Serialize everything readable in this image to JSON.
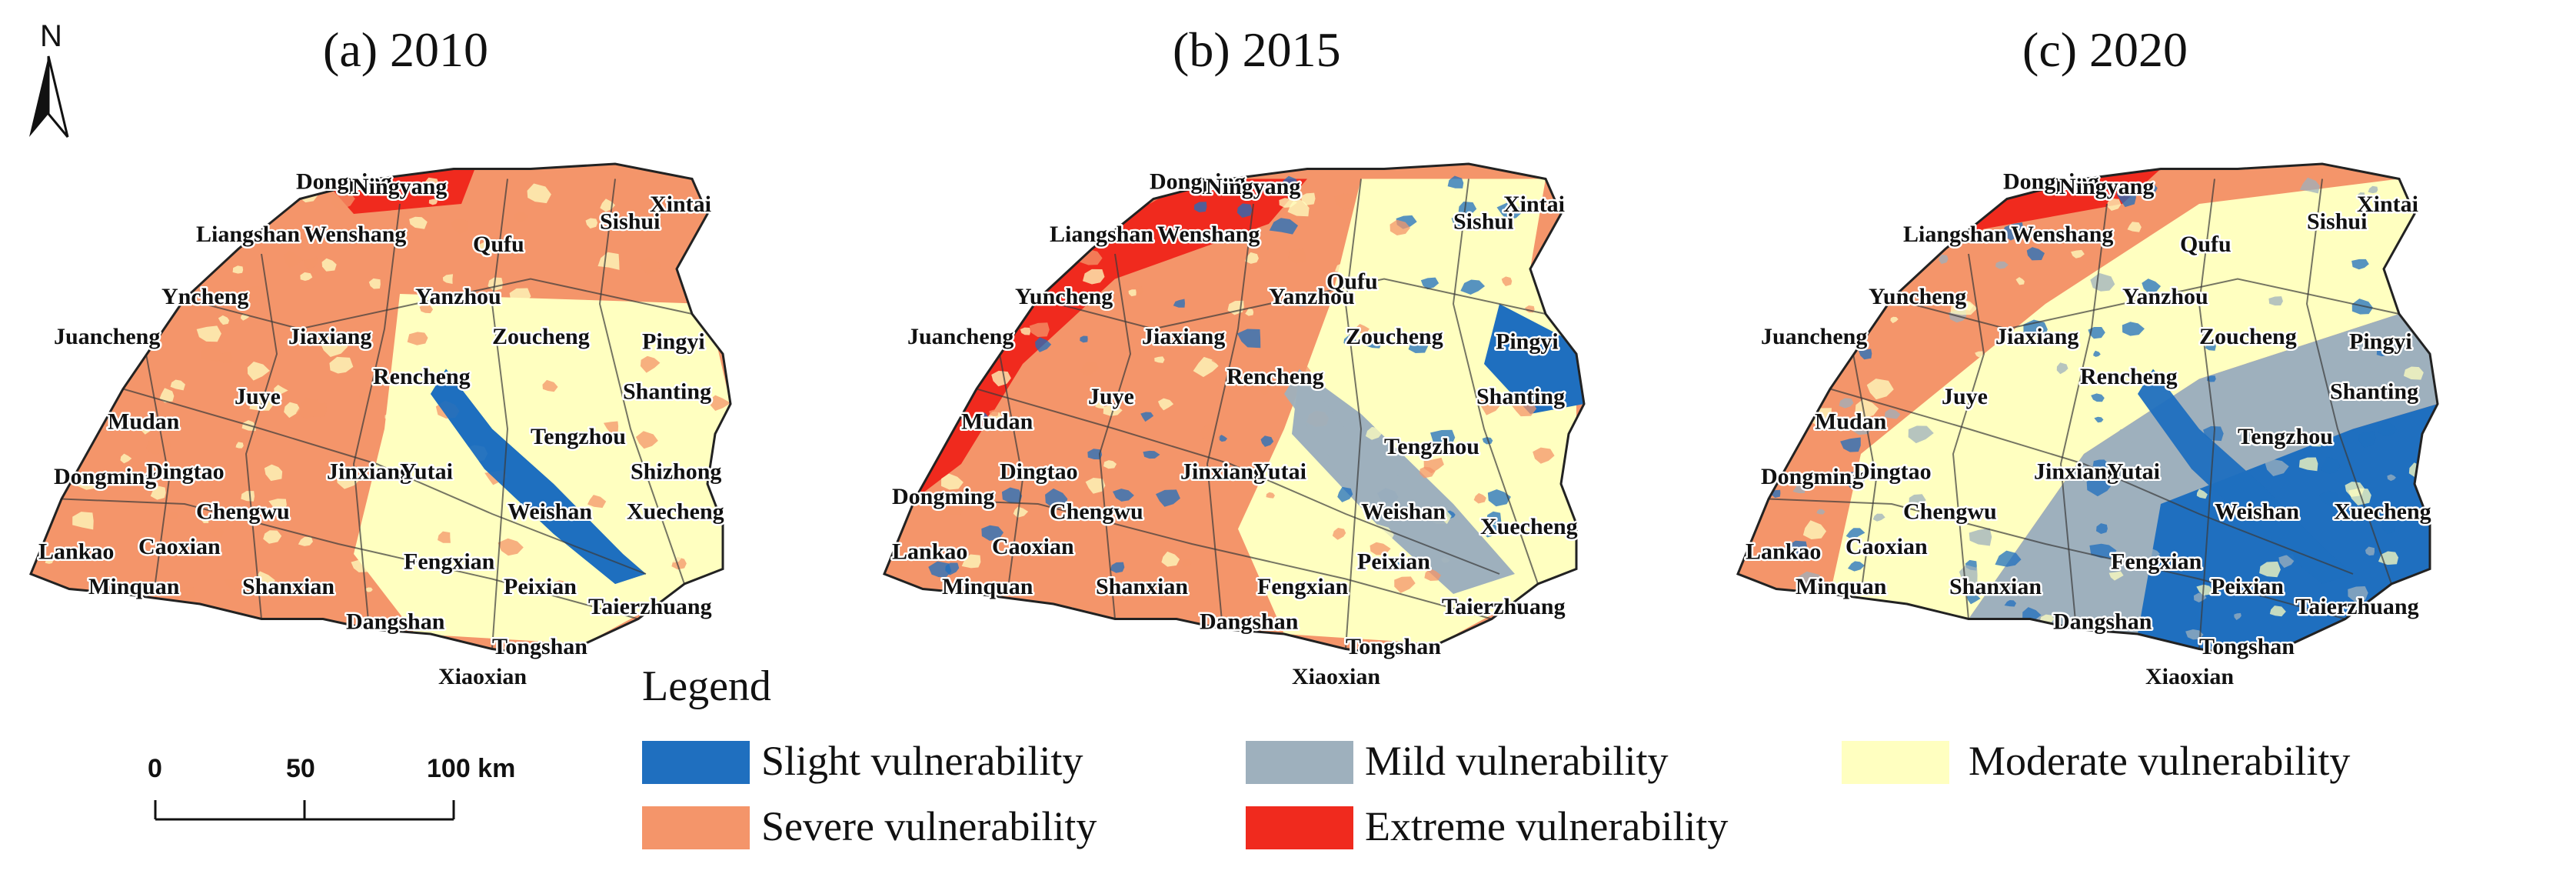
{
  "north_arrow": {
    "label": "N"
  },
  "panels": [
    {
      "title": "(a) 2010",
      "lake": "#1f6fbf",
      "cities": [
        [
          "Dongping",
          0.345,
          0.07
        ],
        [
          "Ningyang",
          0.418,
          0.08
        ],
        [
          "Xintai",
          0.805,
          0.115
        ],
        [
          "Liangshan",
          0.215,
          0.175
        ],
        [
          "Wenshang",
          0.355,
          0.175
        ],
        [
          "Qufu",
          0.575,
          0.195
        ],
        [
          "Sishui",
          0.74,
          0.15
        ],
        [
          "Yncheng",
          0.17,
          0.3
        ],
        [
          "Yanzhou",
          0.5,
          0.3
        ],
        [
          "Juancheng",
          0.03,
          0.38
        ],
        [
          "Jiaxiang",
          0.335,
          0.38
        ],
        [
          "Zoucheng",
          0.6,
          0.38
        ],
        [
          "Pingyi",
          0.795,
          0.39
        ],
        [
          "Rencheng",
          0.445,
          0.46
        ],
        [
          "Shanting",
          0.77,
          0.49
        ],
        [
          "Mudan",
          0.1,
          0.55
        ],
        [
          "Juye",
          0.265,
          0.5
        ],
        [
          "Tengzhou",
          0.65,
          0.58
        ],
        [
          "Dongming",
          0.03,
          0.66
        ],
        [
          "Dingtao",
          0.15,
          0.65
        ],
        [
          "Jinxiang",
          0.385,
          0.65
        ],
        [
          "Yutai",
          0.48,
          0.65
        ],
        [
          "Shizhong",
          0.78,
          0.65
        ],
        [
          "Chengwu",
          0.215,
          0.73
        ],
        [
          "Weishan",
          0.62,
          0.73
        ],
        [
          "Xuecheng",
          0.775,
          0.73
        ],
        [
          "Lankao",
          0.01,
          0.81
        ],
        [
          "Caoxian",
          0.14,
          0.8
        ],
        [
          "Fengxian",
          0.485,
          0.83
        ],
        [
          "Minquan",
          0.075,
          0.88
        ],
        [
          "Shanxian",
          0.275,
          0.88
        ],
        [
          "Peixian",
          0.615,
          0.88
        ],
        [
          "Taierzhuang",
          0.725,
          0.92
        ],
        [
          "Dangshan",
          0.41,
          0.95
        ],
        [
          "Tongshan",
          0.6,
          1.0
        ],
        [
          "Xiaoxian",
          0.53,
          1.06
        ]
      ]
    },
    {
      "title": "(b) 2015",
      "lake": "#9eb0bd",
      "cities": [
        [
          "Dongping",
          0.345,
          0.07
        ],
        [
          "Ningyang",
          0.418,
          0.08
        ],
        [
          "Xintai",
          0.805,
          0.115
        ],
        [
          "Liangshan",
          0.215,
          0.175
        ],
        [
          "Wenshang",
          0.355,
          0.175
        ],
        [
          "Sishui",
          0.74,
          0.15
        ],
        [
          "Yuncheng",
          0.17,
          0.3
        ],
        [
          "Yanzhou",
          0.5,
          0.3
        ],
        [
          "Qufu",
          0.575,
          0.27
        ],
        [
          "Juancheng",
          0.03,
          0.38
        ],
        [
          "Jiaxiang",
          0.335,
          0.38
        ],
        [
          "Zoucheng",
          0.6,
          0.38
        ],
        [
          "Pingyi",
          0.795,
          0.39
        ],
        [
          "Rencheng",
          0.445,
          0.46
        ],
        [
          "Shanting",
          0.77,
          0.5
        ],
        [
          "Mudan",
          0.1,
          0.55
        ],
        [
          "Juye",
          0.265,
          0.5
        ],
        [
          "Tengzhou",
          0.65,
          0.6
        ],
        [
          "Dongming",
          0.01,
          0.7
        ],
        [
          "Dingtao",
          0.15,
          0.65
        ],
        [
          "Jinxiang",
          0.385,
          0.65
        ],
        [
          "Yutai",
          0.48,
          0.65
        ],
        [
          "Chengwu",
          0.215,
          0.73
        ],
        [
          "Weishan",
          0.62,
          0.73
        ],
        [
          "Xuecheng",
          0.775,
          0.76
        ],
        [
          "Lankao",
          0.01,
          0.81
        ],
        [
          "Caoxian",
          0.14,
          0.8
        ],
        [
          "Fengxian",
          0.485,
          0.88
        ],
        [
          "Peixian",
          0.615,
          0.83
        ],
        [
          "Minquan",
          0.075,
          0.88
        ],
        [
          "Shanxian",
          0.275,
          0.88
        ],
        [
          "Taierzhuang",
          0.725,
          0.92
        ],
        [
          "Dangshan",
          0.41,
          0.95
        ],
        [
          "Tongshan",
          0.6,
          1.0
        ],
        [
          "Xiaoxian",
          0.53,
          1.06
        ]
      ]
    },
    {
      "title": "(c) 2020",
      "lake": "#1f6fbf",
      "cities": [
        [
          "Dongping",
          0.345,
          0.07
        ],
        [
          "Ningyang",
          0.418,
          0.08
        ],
        [
          "Xintai",
          0.805,
          0.115
        ],
        [
          "Liangshan",
          0.215,
          0.175
        ],
        [
          "Wenshang",
          0.355,
          0.175
        ],
        [
          "Qufu",
          0.575,
          0.195
        ],
        [
          "Sishui",
          0.74,
          0.15
        ],
        [
          "Yuncheng",
          0.17,
          0.3
        ],
        [
          "Yanzhou",
          0.5,
          0.3
        ],
        [
          "Juancheng",
          0.03,
          0.38
        ],
        [
          "Jiaxiang",
          0.335,
          0.38
        ],
        [
          "Zoucheng",
          0.6,
          0.38
        ],
        [
          "Pingyi",
          0.795,
          0.39
        ],
        [
          "Rencheng",
          0.445,
          0.46
        ],
        [
          "Shanting",
          0.77,
          0.49
        ],
        [
          "Mudan",
          0.1,
          0.55
        ],
        [
          "Juye",
          0.265,
          0.5
        ],
        [
          "Tengzhou",
          0.65,
          0.58
        ],
        [
          "Dongming",
          0.03,
          0.66
        ],
        [
          "Dingtao",
          0.15,
          0.65
        ],
        [
          "Jinxiang",
          0.385,
          0.65
        ],
        [
          "Yutai",
          0.48,
          0.65
        ],
        [
          "Chengwu",
          0.215,
          0.73
        ],
        [
          "Weishan",
          0.62,
          0.73
        ],
        [
          "Xuecheng",
          0.775,
          0.73
        ],
        [
          "Lankao",
          0.01,
          0.81
        ],
        [
          "Caoxian",
          0.14,
          0.8
        ],
        [
          "Fengxian",
          0.485,
          0.83
        ],
        [
          "Minquan",
          0.075,
          0.88
        ],
        [
          "Shanxian",
          0.275,
          0.88
        ],
        [
          "Peixian",
          0.615,
          0.88
        ],
        [
          "Taierzhuang",
          0.725,
          0.92
        ],
        [
          "Dangshan",
          0.41,
          0.95
        ],
        [
          "Tongshan",
          0.6,
          1.0
        ],
        [
          "Xiaoxian",
          0.53,
          1.06
        ]
      ]
    }
  ],
  "legend": {
    "title": "Legend",
    "items": [
      {
        "label": "Slight vulnerability",
        "color": "#1f6fbf"
      },
      {
        "label": "Mild vulnerability",
        "color": "#9eb0bd"
      },
      {
        "label": "Moderate vulnerability",
        "color": "#ffffc0"
      },
      {
        "label": "Severe vulnerability",
        "color": "#f4956a"
      },
      {
        "label": "Extreme vulnerability",
        "color": "#f02a1e"
      }
    ]
  },
  "scale_bar": {
    "ticks": [
      "0",
      "50",
      "100 km"
    ]
  }
}
